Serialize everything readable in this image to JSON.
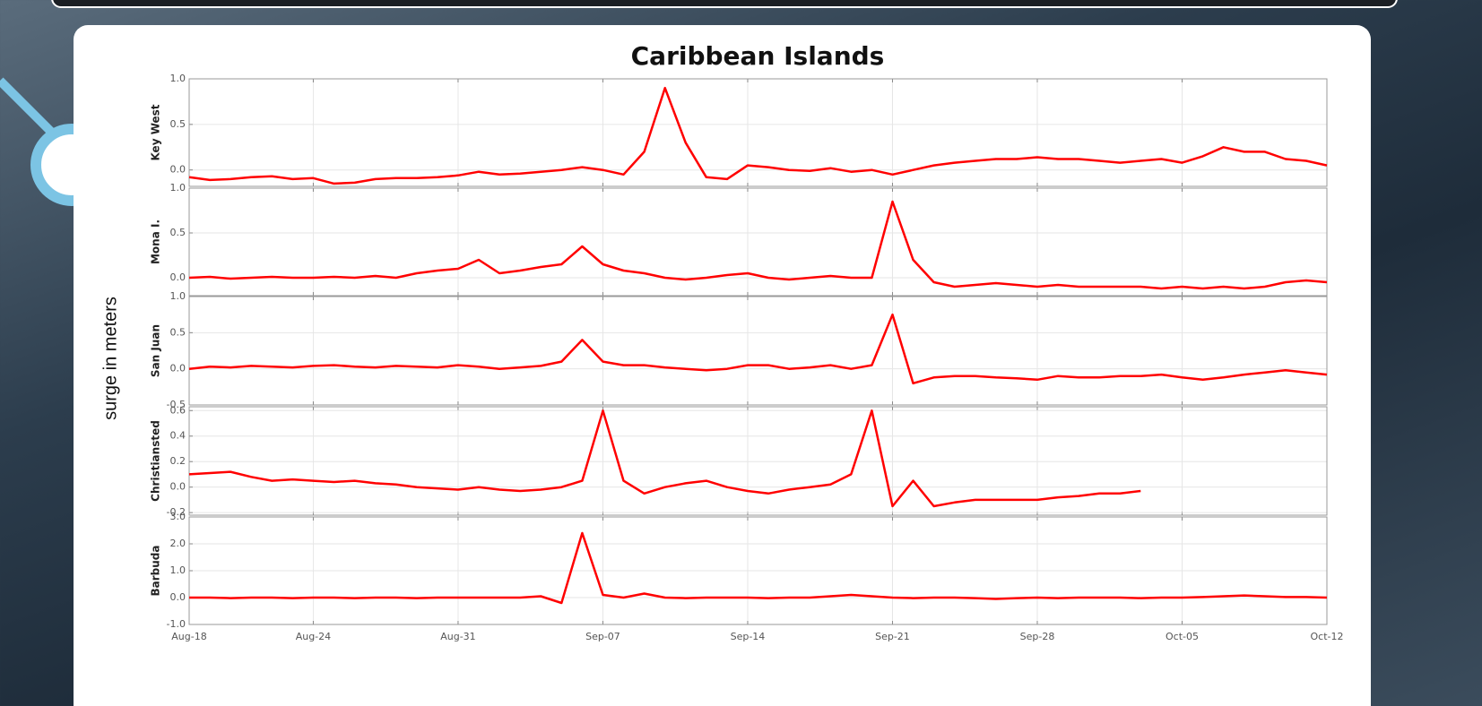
{
  "title": "Caribbean Islands",
  "y_label": "surge in meters",
  "chart_data": [
    {
      "type": "line",
      "ylabel": "Key West",
      "color": "#ff0000",
      "x": [
        "Aug-18",
        "Aug-19",
        "Aug-20",
        "Aug-21",
        "Aug-22",
        "Aug-23",
        "Aug-24",
        "Aug-25",
        "Aug-26",
        "Aug-27",
        "Aug-28",
        "Aug-29",
        "Aug-30",
        "Aug-31",
        "Sep-01",
        "Sep-02",
        "Sep-03",
        "Sep-04",
        "Sep-05",
        "Sep-06",
        "Sep-07",
        "Sep-08",
        "Sep-09",
        "Sep-10",
        "Sep-11",
        "Sep-12",
        "Sep-13",
        "Sep-14",
        "Sep-15",
        "Sep-16",
        "Sep-17",
        "Sep-18",
        "Sep-19",
        "Sep-20",
        "Sep-21",
        "Sep-22",
        "Sep-23",
        "Sep-24",
        "Sep-25",
        "Sep-26",
        "Sep-27",
        "Sep-28",
        "Sep-29",
        "Sep-30",
        "Oct-01",
        "Oct-02",
        "Oct-03",
        "Oct-04",
        "Oct-05",
        "Oct-06",
        "Oct-07",
        "Oct-08",
        "Oct-09",
        "Oct-10",
        "Oct-11",
        "Oct-12"
      ],
      "values": [
        -0.08,
        -0.11,
        -0.1,
        -0.08,
        -0.07,
        -0.1,
        -0.09,
        -0.15,
        -0.14,
        -0.1,
        -0.09,
        -0.09,
        -0.08,
        -0.06,
        -0.02,
        -0.05,
        -0.04,
        -0.02,
        0.0,
        0.03,
        0.0,
        -0.05,
        0.2,
        0.9,
        0.3,
        -0.08,
        -0.1,
        0.05,
        0.03,
        0.0,
        -0.01,
        0.02,
        -0.02,
        0.0,
        -0.05,
        0.0,
        0.05,
        0.08,
        0.1,
        0.12,
        0.12,
        0.14,
        0.12,
        0.12,
        0.1,
        0.08,
        0.1,
        0.12,
        0.08,
        0.15,
        0.25,
        0.2,
        0.2,
        0.12,
        0.1,
        0.05
      ],
      "ylim": [
        -0.18,
        1.0
      ],
      "yticks": [
        {
          "value": 0,
          "label": "0.0"
        },
        {
          "value": 0.5,
          "label": "0.5"
        },
        {
          "value": 1,
          "label": "1.0"
        }
      ],
      "xticks": [
        "Aug-18",
        "Aug-24",
        "Aug-31",
        "Sep-07",
        "Sep-14",
        "Sep-21",
        "Sep-28",
        "Oct-05",
        "Oct-12"
      ],
      "grid": true
    },
    {
      "type": "line",
      "ylabel": "Mona I.",
      "color": "#ff0000",
      "x": [
        "Aug-18",
        "Aug-19",
        "Aug-20",
        "Aug-21",
        "Aug-22",
        "Aug-23",
        "Aug-24",
        "Aug-25",
        "Aug-26",
        "Aug-27",
        "Aug-28",
        "Aug-29",
        "Aug-30",
        "Aug-31",
        "Sep-01",
        "Sep-02",
        "Sep-03",
        "Sep-04",
        "Sep-05",
        "Sep-06",
        "Sep-07",
        "Sep-08",
        "Sep-09",
        "Sep-10",
        "Sep-11",
        "Sep-12",
        "Sep-13",
        "Sep-14",
        "Sep-15",
        "Sep-16",
        "Sep-17",
        "Sep-18",
        "Sep-19",
        "Sep-20",
        "Sep-21",
        "Sep-22",
        "Sep-23",
        "Sep-24",
        "Sep-25",
        "Sep-26",
        "Sep-27",
        "Sep-28",
        "Sep-29",
        "Sep-30",
        "Oct-01",
        "Oct-02",
        "Oct-03",
        "Oct-04",
        "Oct-05",
        "Oct-06",
        "Oct-07",
        "Oct-08",
        "Oct-09",
        "Oct-10",
        "Oct-11",
        "Oct-12"
      ],
      "values": [
        0.0,
        0.01,
        -0.01,
        0.0,
        0.01,
        0.0,
        0.0,
        0.01,
        0.0,
        0.02,
        0.0,
        0.05,
        0.08,
        0.1,
        0.2,
        0.05,
        0.08,
        0.12,
        0.15,
        0.35,
        0.15,
        0.08,
        0.05,
        0.0,
        -0.02,
        0.0,
        0.03,
        0.05,
        0.0,
        -0.02,
        0.0,
        0.02,
        0.0,
        0.0,
        0.85,
        0.2,
        -0.05,
        -0.1,
        -0.08,
        -0.06,
        -0.08,
        -0.1,
        -0.08,
        -0.1,
        -0.1,
        -0.1,
        -0.1,
        -0.12,
        -0.1,
        -0.12,
        -0.1,
        -0.12,
        -0.1,
        -0.05,
        -0.03,
        -0.05
      ],
      "ylim": [
        -0.2,
        1.0
      ],
      "yticks": [
        {
          "value": 0,
          "label": "0.0"
        },
        {
          "value": 0.5,
          "label": "0.5"
        },
        {
          "value": 1,
          "label": "1.0"
        }
      ],
      "xticks": [
        "Aug-18",
        "Aug-24",
        "Aug-31",
        "Sep-07",
        "Sep-14",
        "Sep-21",
        "Sep-28",
        "Oct-05",
        "Oct-12"
      ],
      "grid": true
    },
    {
      "type": "line",
      "ylabel": "San Juan",
      "color": "#ff0000",
      "x": [
        "Aug-18",
        "Aug-19",
        "Aug-20",
        "Aug-21",
        "Aug-22",
        "Aug-23",
        "Aug-24",
        "Aug-25",
        "Aug-26",
        "Aug-27",
        "Aug-28",
        "Aug-29",
        "Aug-30",
        "Aug-31",
        "Sep-01",
        "Sep-02",
        "Sep-03",
        "Sep-04",
        "Sep-05",
        "Sep-06",
        "Sep-07",
        "Sep-08",
        "Sep-09",
        "Sep-10",
        "Sep-11",
        "Sep-12",
        "Sep-13",
        "Sep-14",
        "Sep-15",
        "Sep-16",
        "Sep-17",
        "Sep-18",
        "Sep-19",
        "Sep-20",
        "Sep-21",
        "Sep-22",
        "Sep-23",
        "Sep-24",
        "Sep-25",
        "Sep-26",
        "Sep-27",
        "Sep-28",
        "Sep-29",
        "Sep-30",
        "Oct-01",
        "Oct-02",
        "Oct-03",
        "Oct-04",
        "Oct-05",
        "Oct-06",
        "Oct-07",
        "Oct-08",
        "Oct-09",
        "Oct-10",
        "Oct-11",
        "Oct-12"
      ],
      "values": [
        0.0,
        0.03,
        0.02,
        0.04,
        0.03,
        0.02,
        0.04,
        0.05,
        0.03,
        0.02,
        0.04,
        0.03,
        0.02,
        0.05,
        0.03,
        0.0,
        0.02,
        0.04,
        0.1,
        0.4,
        0.1,
        0.05,
        0.05,
        0.02,
        0.0,
        -0.02,
        0.0,
        0.05,
        0.05,
        0.0,
        0.02,
        0.05,
        0.0,
        0.05,
        0.75,
        -0.2,
        -0.12,
        -0.1,
        -0.1,
        -0.12,
        -0.13,
        -0.15,
        -0.1,
        -0.12,
        -0.12,
        -0.1,
        -0.1,
        -0.08,
        -0.12,
        -0.15,
        -0.12,
        -0.08,
        -0.05,
        -0.02,
        -0.05,
        -0.08
      ],
      "ylim": [
        -0.5,
        1.0
      ],
      "yticks": [
        {
          "value": -0.5,
          "label": "-0.5"
        },
        {
          "value": 0,
          "label": "0.0"
        },
        {
          "value": 0.5,
          "label": "0.5"
        },
        {
          "value": 1,
          "label": "1.0"
        }
      ],
      "xticks": [
        "Aug-18",
        "Aug-24",
        "Aug-31",
        "Sep-07",
        "Sep-14",
        "Sep-21",
        "Sep-28",
        "Oct-05",
        "Oct-12"
      ],
      "grid": true
    },
    {
      "type": "line",
      "ylabel": "Christiansted",
      "color": "#ff0000",
      "x": [
        "Aug-18",
        "Aug-19",
        "Aug-20",
        "Aug-21",
        "Aug-22",
        "Aug-23",
        "Aug-24",
        "Aug-25",
        "Aug-26",
        "Aug-27",
        "Aug-28",
        "Aug-29",
        "Aug-30",
        "Aug-31",
        "Sep-01",
        "Sep-02",
        "Sep-03",
        "Sep-04",
        "Sep-05",
        "Sep-06",
        "Sep-07",
        "Sep-08",
        "Sep-09",
        "Sep-10",
        "Sep-11",
        "Sep-12",
        "Sep-13",
        "Sep-14",
        "Sep-15",
        "Sep-16",
        "Sep-17",
        "Sep-18",
        "Sep-19",
        "Sep-20",
        "Sep-21",
        "Sep-22",
        "Sep-23",
        "Sep-24",
        "Sep-25",
        "Sep-26",
        "Sep-27",
        "Sep-28",
        "Sep-29",
        "Sep-30",
        "Oct-01",
        "Oct-02",
        "Oct-03",
        "Oct-04",
        "Oct-05",
        "Oct-06",
        "Oct-07",
        "Oct-08",
        "Oct-09",
        "Oct-10",
        "Oct-11",
        "Oct-12"
      ],
      "values": [
        0.1,
        0.11,
        0.12,
        0.08,
        0.05,
        0.06,
        0.05,
        0.04,
        0.05,
        0.03,
        0.02,
        0.0,
        -0.01,
        -0.02,
        0.0,
        -0.02,
        -0.03,
        -0.02,
        0.0,
        0.05,
        0.6,
        0.05,
        -0.05,
        0.0,
        0.03,
        0.05,
        0.0,
        -0.03,
        -0.05,
        -0.02,
        0.0,
        0.02,
        0.1,
        0.6,
        -0.15,
        0.05,
        -0.15,
        -0.12,
        -0.1,
        -0.1,
        -0.1,
        -0.1,
        -0.08,
        -0.07,
        -0.05,
        -0.05,
        -0.03,
        null,
        null,
        null,
        null,
        null,
        null,
        null,
        null,
        null
      ],
      "ylim": [
        -0.22,
        0.63
      ],
      "yticks": [
        -0.2,
        {
          "value": 0,
          "label": "0.0"
        },
        0.2,
        0.4,
        0.6
      ],
      "xticks": [
        "Aug-18",
        "Aug-24",
        "Aug-31",
        "Sep-07",
        "Sep-14",
        "Sep-21",
        "Sep-28",
        "Oct-05",
        "Oct-12"
      ],
      "grid": true
    },
    {
      "type": "line",
      "ylabel": "Barbuda",
      "color": "#ff0000",
      "x": [
        "Aug-18",
        "Aug-19",
        "Aug-20",
        "Aug-21",
        "Aug-22",
        "Aug-23",
        "Aug-24",
        "Aug-25",
        "Aug-26",
        "Aug-27",
        "Aug-28",
        "Aug-29",
        "Aug-30",
        "Aug-31",
        "Sep-01",
        "Sep-02",
        "Sep-03",
        "Sep-04",
        "Sep-05",
        "Sep-06",
        "Sep-07",
        "Sep-08",
        "Sep-09",
        "Sep-10",
        "Sep-11",
        "Sep-12",
        "Sep-13",
        "Sep-14",
        "Sep-15",
        "Sep-16",
        "Sep-17",
        "Sep-18",
        "Sep-19",
        "Sep-20",
        "Sep-21",
        "Sep-22",
        "Sep-23",
        "Sep-24",
        "Sep-25",
        "Sep-26",
        "Sep-27",
        "Sep-28",
        "Sep-29",
        "Sep-30",
        "Oct-01",
        "Oct-02",
        "Oct-03",
        "Oct-04",
        "Oct-05",
        "Oct-06",
        "Oct-07",
        "Oct-08",
        "Oct-09",
        "Oct-10",
        "Oct-11",
        "Oct-12"
      ],
      "values": [
        0.0,
        0.0,
        -0.02,
        0.0,
        0.0,
        -0.02,
        0.0,
        0.0,
        -0.02,
        0.0,
        0.0,
        -0.02,
        0.0,
        0.0,
        0.0,
        0.0,
        0.0,
        0.05,
        -0.2,
        2.4,
        0.1,
        0.0,
        0.15,
        0.0,
        -0.02,
        0.0,
        0.0,
        0.0,
        -0.02,
        0.0,
        0.0,
        0.05,
        0.1,
        0.05,
        0.0,
        -0.02,
        0.0,
        0.0,
        -0.02,
        -0.05,
        -0.02,
        0.0,
        -0.02,
        0.0,
        0.0,
        0.0,
        -0.02,
        0.0,
        0.0,
        0.02,
        0.05,
        0.08,
        0.05,
        0.02,
        0.02,
        0.0
      ],
      "ylim": [
        -1.0,
        3.0
      ],
      "yticks": [
        {
          "value": -1,
          "label": "-1.0"
        },
        {
          "value": 0,
          "label": "0.0"
        },
        {
          "value": 1,
          "label": "1.0"
        },
        {
          "value": 2,
          "label": "2.0"
        },
        {
          "value": 3,
          "label": "3.0"
        }
      ],
      "xticks": [
        "Aug-18",
        "Aug-24",
        "Aug-31",
        "Sep-07",
        "Sep-14",
        "Sep-21",
        "Sep-28",
        "Oct-05",
        "Oct-12"
      ],
      "grid": true
    }
  ]
}
